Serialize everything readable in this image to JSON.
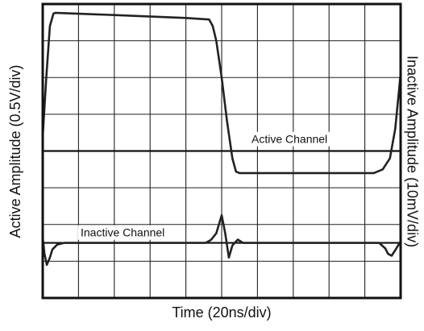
{
  "chart_data": {
    "type": "line",
    "xlabel": "Time (20ns/div)",
    "ylabel": "Active Amplitude (0.5V/div)",
    "y2label": "Inactive Amplitude (10mV/div)",
    "xlim": [
      0,
      200
    ],
    "ylim": [
      -2,
      2
    ],
    "y2lim": [
      -15,
      65
    ],
    "xticks": [
      0,
      20,
      40,
      60,
      80,
      100,
      120,
      140,
      160,
      180,
      200
    ],
    "yticks": [
      -2,
      -1.5,
      -1,
      -0.5,
      0,
      0.5,
      1,
      1.5,
      2
    ],
    "grid": true,
    "series": [
      {
        "name": "Active Channel",
        "color": "#222222",
        "x": [
          0,
          2,
          4,
          6,
          7,
          40,
          80,
          93,
          95,
          97,
          100,
          103,
          106,
          108,
          110,
          150,
          185,
          190,
          194,
          197,
          200
        ],
        "values": [
          0.2,
          1.0,
          1.7,
          1.87,
          1.88,
          1.85,
          1.81,
          1.79,
          1.7,
          1.5,
          1.0,
          0.4,
          -0.1,
          -0.28,
          -0.3,
          -0.3,
          -0.3,
          -0.25,
          -0.1,
          0.3,
          1.05
        ]
      },
      {
        "name": "Inactive Channel",
        "color": "#222222",
        "axis": "y2",
        "x": [
          0,
          1,
          2.3,
          4,
          5.4,
          8,
          12,
          60,
          91,
          94,
          97,
          100,
          102,
          104,
          106,
          109,
          112,
          150,
          188,
          191.4,
          193,
          195,
          197,
          200
        ],
        "values": [
          1.5,
          -3,
          -6,
          -4,
          -1.8,
          -0.5,
          0,
          0,
          0,
          0.8,
          2.6,
          7.5,
          2.6,
          -4,
          -0.7,
          0.9,
          0,
          0,
          0,
          -1.5,
          -3,
          -3.5,
          -2,
          0.4
        ]
      }
    ]
  }
}
